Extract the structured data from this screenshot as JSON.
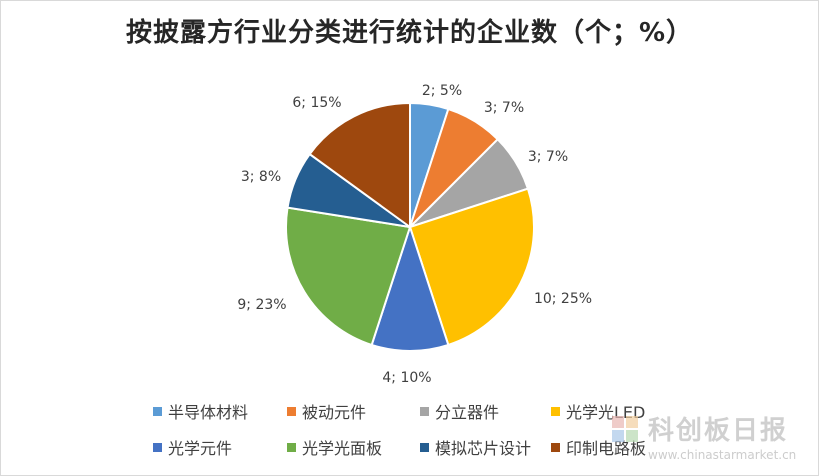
{
  "chart_data": {
    "type": "pie",
    "title": "按披露方行业分类进行统计的企业数（个；%）",
    "slices": [
      {
        "name": "半导体材料",
        "value": 2,
        "percent": 5,
        "label": "2; 5%",
        "color": "#5B9BD5"
      },
      {
        "name": "被动元件",
        "value": 3,
        "percent": 7,
        "label": "3; 7%",
        "color": "#ED7D31"
      },
      {
        "name": "分立器件",
        "value": 3,
        "percent": 7,
        "label": "3; 7%",
        "color": "#A5A5A5"
      },
      {
        "name": "光学光LED",
        "value": 10,
        "percent": 25,
        "label": "10; 25%",
        "color": "#FFC000"
      },
      {
        "name": "光学元件",
        "value": 4,
        "percent": 10,
        "label": "4; 10%",
        "color": "#4472C4"
      },
      {
        "name": "光学光面板",
        "value": 9,
        "percent": 23,
        "label": "9; 23%",
        "color": "#70AD47"
      },
      {
        "name": "模拟芯片设计",
        "value": 3,
        "percent": 8,
        "label": "3; 8%",
        "color": "#255E91"
      },
      {
        "name": "印制电路板",
        "value": 6,
        "percent": 15,
        "label": "6; 15%",
        "color": "#9E480E"
      }
    ],
    "legend_position": "bottom"
  },
  "watermark": {
    "name": "科创板日报",
    "url": "www.chinastarmarket.cn",
    "logo_colors": [
      "#E8B7B2",
      "#F2CFA0",
      "#A9C8E8",
      "#B7D9B0"
    ]
  }
}
